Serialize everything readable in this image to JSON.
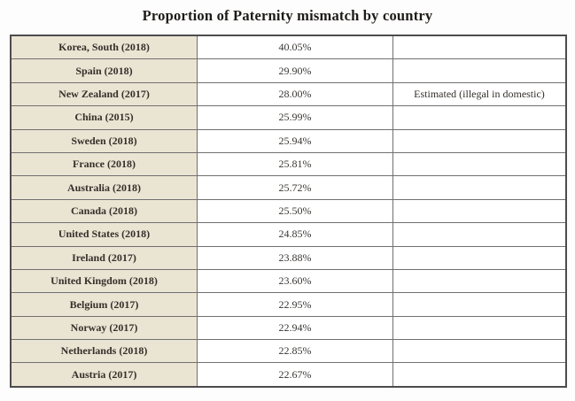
{
  "title": "Proportion of Paternity mismatch by country",
  "colors": {
    "label_bg": "#eae4d3",
    "inner_border": "#707070",
    "outer_border": "#4c4c4c",
    "text": "#2f2c28",
    "page_bg": "#fdfdfd"
  },
  "chart_data": {
    "type": "table",
    "title": "Proportion of Paternity mismatch by country",
    "rows": [
      {
        "label": "Korea, South (2018)",
        "value": "40.05%",
        "note": ""
      },
      {
        "label": "Spain (2018)",
        "value": "29.90%",
        "note": ""
      },
      {
        "label": "New Zealand (2017)",
        "value": "28.00%",
        "note": "Estimated (illegal in domestic)"
      },
      {
        "label": "China (2015)",
        "value": "25.99%",
        "note": ""
      },
      {
        "label": "Sweden (2018)",
        "value": "25.94%",
        "note": ""
      },
      {
        "label": "France (2018)",
        "value": "25.81%",
        "note": ""
      },
      {
        "label": "Australia (2018)",
        "value": "25.72%",
        "note": ""
      },
      {
        "label": "Canada (2018)",
        "value": "25.50%",
        "note": ""
      },
      {
        "label": "United States (2018)",
        "value": "24.85%",
        "note": ""
      },
      {
        "label": "Ireland (2017)",
        "value": "23.88%",
        "note": ""
      },
      {
        "label": "United Kingdom (2018)",
        "value": "23.60%",
        "note": ""
      },
      {
        "label": "Belgium (2017)",
        "value": "22.95%",
        "note": ""
      },
      {
        "label": "Norway (2017)",
        "value": "22.94%",
        "note": ""
      },
      {
        "label": "Netherlands (2018)",
        "value": "22.85%",
        "note": ""
      },
      {
        "label": "Austria (2017)",
        "value": "22.67%",
        "note": ""
      }
    ],
    "values": [
      40.05,
      29.9,
      28.0,
      25.99,
      25.94,
      25.81,
      25.72,
      25.5,
      24.85,
      23.88,
      23.6,
      22.95,
      22.94,
      22.85,
      22.67
    ]
  }
}
